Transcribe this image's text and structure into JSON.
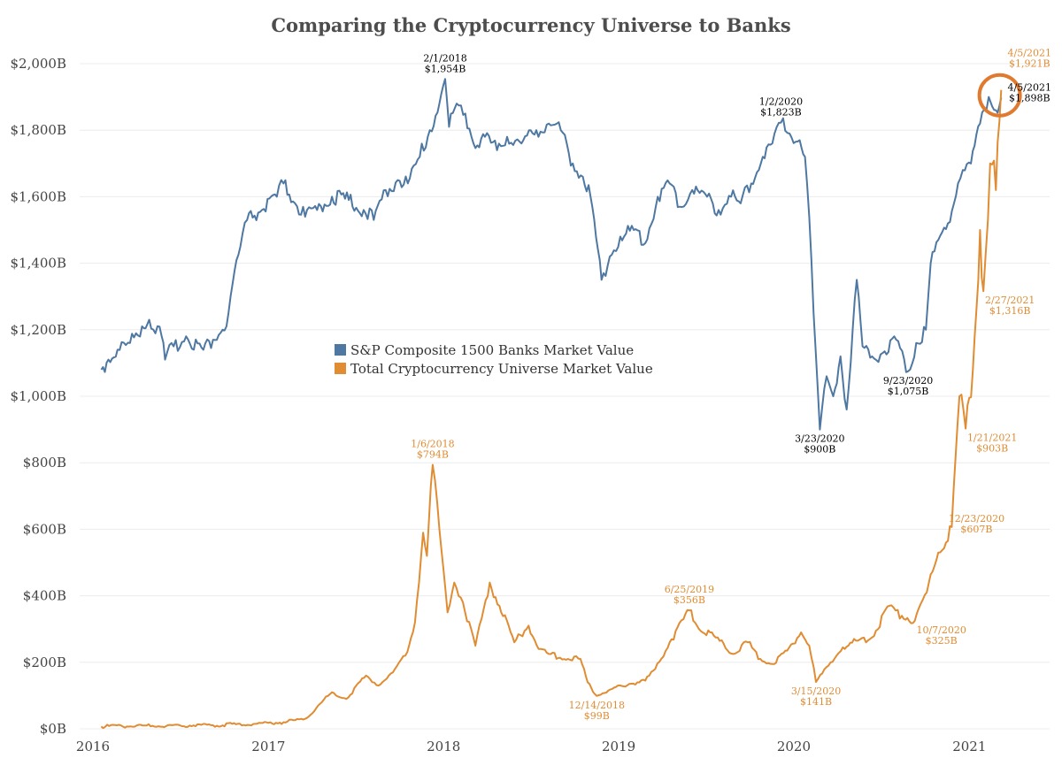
{
  "chart_data": {
    "type": "line",
    "title": "Comparing the Cryptocurrency Universe to Banks",
    "xlabel": "",
    "ylabel": "",
    "x_ticks": [
      "2016",
      "2017",
      "2018",
      "2019",
      "2020",
      "2021"
    ],
    "y_ticks": [
      "$0B",
      "$200B",
      "$400B",
      "$600B",
      "$800B",
      "$1,000B",
      "$1,200B",
      "$1,400B",
      "$1,600B",
      "$1,800B",
      "$2,000B"
    ],
    "xlim": [
      "2016-01-01",
      "2021-07-15"
    ],
    "ylim": [
      0,
      2000
    ],
    "grid": true,
    "legend_position": "center-left",
    "colors": {
      "banks": "#4e78a2",
      "crypto": "#e08c33",
      "highlight": "#e07a2f"
    },
    "series": [
      {
        "name": "S&P Composite 1500 Banks Market Value",
        "key": "banks",
        "points": [
          [
            "2016-02-15",
            1080
          ],
          [
            "2016-03-01",
            1110
          ],
          [
            "2016-03-20",
            1140
          ],
          [
            "2016-04-15",
            1160
          ],
          [
            "2016-05-10",
            1210
          ],
          [
            "2016-05-25",
            1230
          ],
          [
            "2016-06-20",
            1180
          ],
          [
            "2016-06-27",
            1110
          ],
          [
            "2016-07-15",
            1150
          ],
          [
            "2016-08-10",
            1180
          ],
          [
            "2016-09-15",
            1140
          ],
          [
            "2016-10-05",
            1170
          ],
          [
            "2016-10-25",
            1200
          ],
          [
            "2016-11-02",
            1210
          ],
          [
            "2016-11-15",
            1340
          ],
          [
            "2016-12-01",
            1450
          ],
          [
            "2016-12-15",
            1530
          ],
          [
            "2017-01-15",
            1560
          ],
          [
            "2017-02-15",
            1600
          ],
          [
            "2017-03-01",
            1640
          ],
          [
            "2017-03-25",
            1580
          ],
          [
            "2017-04-15",
            1540
          ],
          [
            "2017-05-10",
            1560
          ],
          [
            "2017-06-10",
            1600
          ],
          [
            "2017-07-15",
            1590
          ],
          [
            "2017-08-15",
            1560
          ],
          [
            "2017-09-05",
            1530
          ],
          [
            "2017-09-30",
            1620
          ],
          [
            "2017-10-25",
            1650
          ],
          [
            "2017-11-15",
            1640
          ],
          [
            "2017-12-10",
            1720
          ],
          [
            "2017-12-31",
            1800
          ],
          [
            "2018-01-20",
            1880
          ],
          [
            "2018-02-01",
            1954
          ],
          [
            "2018-02-09",
            1810
          ],
          [
            "2018-02-25",
            1880
          ],
          [
            "2018-03-15",
            1850
          ],
          [
            "2018-04-01",
            1760
          ],
          [
            "2018-04-25",
            1780
          ],
          [
            "2018-05-20",
            1740
          ],
          [
            "2018-06-10",
            1780
          ],
          [
            "2018-07-10",
            1760
          ],
          [
            "2018-08-10",
            1800
          ],
          [
            "2018-09-05",
            1820
          ],
          [
            "2018-09-30",
            1800
          ],
          [
            "2018-10-25",
            1700
          ],
          [
            "2018-11-15",
            1660
          ],
          [
            "2018-12-01",
            1600
          ],
          [
            "2018-12-24",
            1350
          ],
          [
            "2019-01-10",
            1420
          ],
          [
            "2019-02-01",
            1480
          ],
          [
            "2019-03-01",
            1500
          ],
          [
            "2019-03-25",
            1460
          ],
          [
            "2019-04-20",
            1600
          ],
          [
            "2019-05-15",
            1640
          ],
          [
            "2019-06-05",
            1570
          ],
          [
            "2019-07-01",
            1620
          ],
          [
            "2019-08-01",
            1600
          ],
          [
            "2019-08-25",
            1560
          ],
          [
            "2019-09-20",
            1600
          ],
          [
            "2019-10-10",
            1580
          ],
          [
            "2019-11-01",
            1640
          ],
          [
            "2019-11-25",
            1720
          ],
          [
            "2019-12-15",
            1760
          ],
          [
            "2020-01-02",
            1823
          ],
          [
            "2020-01-20",
            1790
          ],
          [
            "2020-02-10",
            1770
          ],
          [
            "2020-02-21",
            1720
          ],
          [
            "2020-03-01",
            1540
          ],
          [
            "2020-03-10",
            1250
          ],
          [
            "2020-03-23",
            900
          ],
          [
            "2020-04-06",
            1060
          ],
          [
            "2020-04-20",
            1000
          ],
          [
            "2020-05-05",
            1120
          ],
          [
            "2020-05-18",
            960
          ],
          [
            "2020-06-08",
            1350
          ],
          [
            "2020-06-20",
            1150
          ],
          [
            "2020-07-10",
            1120
          ],
          [
            "2020-08-01",
            1130
          ],
          [
            "2020-08-25",
            1180
          ],
          [
            "2020-09-23",
            1075
          ],
          [
            "2020-10-10",
            1160
          ],
          [
            "2020-10-30",
            1200
          ],
          [
            "2020-11-09",
            1400
          ],
          [
            "2020-11-25",
            1470
          ],
          [
            "2020-12-15",
            1520
          ],
          [
            "2021-01-05",
            1640
          ],
          [
            "2021-01-15",
            1680
          ],
          [
            "2021-02-01",
            1700
          ],
          [
            "2021-02-20",
            1820
          ],
          [
            "2021-03-10",
            1900
          ],
          [
            "2021-03-25",
            1860
          ],
          [
            "2021-04-05",
            1898
          ]
        ]
      },
      {
        "name": "Total Cryptocurrency Universe Market Value",
        "key": "crypto",
        "points": [
          [
            "2016-02-15",
            7
          ],
          [
            "2016-06-01",
            9
          ],
          [
            "2016-10-01",
            11
          ],
          [
            "2017-01-01",
            15
          ],
          [
            "2017-03-01",
            20
          ],
          [
            "2017-04-15",
            30
          ],
          [
            "2017-05-20",
            80
          ],
          [
            "2017-06-10",
            110
          ],
          [
            "2017-07-10",
            90
          ],
          [
            "2017-08-20",
            160
          ],
          [
            "2017-09-15",
            130
          ],
          [
            "2017-10-15",
            170
          ],
          [
            "2017-11-10",
            220
          ],
          [
            "2017-11-30",
            320
          ],
          [
            "2017-12-17",
            590
          ],
          [
            "2017-12-25",
            520
          ],
          [
            "2018-01-06",
            794
          ],
          [
            "2018-01-20",
            600
          ],
          [
            "2018-02-06",
            350
          ],
          [
            "2018-02-20",
            440
          ],
          [
            "2018-03-10",
            380
          ],
          [
            "2018-04-05",
            250
          ],
          [
            "2018-05-05",
            440
          ],
          [
            "2018-05-25",
            370
          ],
          [
            "2018-06-25",
            260
          ],
          [
            "2018-07-25",
            310
          ],
          [
            "2018-08-15",
            240
          ],
          [
            "2018-09-05",
            225
          ],
          [
            "2018-10-15",
            210
          ],
          [
            "2018-11-10",
            210
          ],
          [
            "2018-11-25",
            140
          ],
          [
            "2018-12-14",
            99
          ],
          [
            "2019-01-15",
            120
          ],
          [
            "2019-02-20",
            135
          ],
          [
            "2019-03-25",
            145
          ],
          [
            "2019-04-15",
            180
          ],
          [
            "2019-05-15",
            260
          ],
          [
            "2019-06-25",
            356
          ],
          [
            "2019-07-15",
            300
          ],
          [
            "2019-08-15",
            280
          ],
          [
            "2019-09-25",
            225
          ],
          [
            "2019-10-25",
            260
          ],
          [
            "2019-11-20",
            210
          ],
          [
            "2019-12-15",
            195
          ],
          [
            "2020-01-15",
            235
          ],
          [
            "2020-02-13",
            290
          ],
          [
            "2020-03-01",
            250
          ],
          [
            "2020-03-15",
            141
          ],
          [
            "2020-04-10",
            190
          ],
          [
            "2020-05-10",
            245
          ],
          [
            "2020-06-10",
            265
          ],
          [
            "2020-07-10",
            275
          ],
          [
            "2020-08-15",
            370
          ],
          [
            "2020-09-10",
            340
          ],
          [
            "2020-10-07",
            325
          ],
          [
            "2020-11-01",
            410
          ],
          [
            "2020-11-25",
            530
          ],
          [
            "2020-12-23",
            607
          ],
          [
            "2021-01-08",
            1000
          ],
          [
            "2021-01-21",
            903
          ],
          [
            "2021-02-05",
            1080
          ],
          [
            "2021-02-20",
            1500
          ],
          [
            "2021-02-27",
            1316
          ],
          [
            "2021-03-13",
            1700
          ],
          [
            "2021-03-25",
            1620
          ],
          [
            "2021-04-05",
            1921
          ]
        ]
      }
    ],
    "annotations": [
      {
        "series": "banks",
        "date": "2018-02-01",
        "value": 1954,
        "line1": "2/1/2018",
        "line2": "$1,954B",
        "pos": "above"
      },
      {
        "series": "banks",
        "date": "2020-01-02",
        "value": 1823,
        "line1": "1/2/2020",
        "line2": "$1,823B",
        "pos": "above"
      },
      {
        "series": "banks",
        "date": "2020-03-23",
        "value": 900,
        "line1": "3/23/2020",
        "line2": "$900B",
        "pos": "below"
      },
      {
        "series": "banks",
        "date": "2020-09-23",
        "value": 1075,
        "line1": "9/23/2020",
        "line2": "$1,075B",
        "pos": "below"
      },
      {
        "series": "banks",
        "date": "2021-04-05",
        "value": 1898,
        "line1": "4/5/2021",
        "line2": "$1,898B",
        "pos": "right-low"
      },
      {
        "series": "crypto",
        "date": "2018-01-06",
        "value": 794,
        "line1": "1/6/2018",
        "line2": "$794B",
        "pos": "above"
      },
      {
        "series": "crypto",
        "date": "2018-12-14",
        "value": 99,
        "line1": "12/14/2018",
        "line2": "$99B",
        "pos": "below"
      },
      {
        "series": "crypto",
        "date": "2019-06-25",
        "value": 356,
        "line1": "6/25/2019",
        "line2": "$356B",
        "pos": "above"
      },
      {
        "series": "crypto",
        "date": "2020-03-15",
        "value": 141,
        "line1": "3/15/2020",
        "line2": "$141B",
        "pos": "below"
      },
      {
        "series": "crypto",
        "date": "2020-10-07",
        "value": 325,
        "line1": "10/7/2020",
        "line2": "$325B",
        "pos": "below-right"
      },
      {
        "series": "crypto",
        "date": "2020-12-23",
        "value": 607,
        "line1": "12/23/2020",
        "line2": "$607B",
        "pos": "right"
      },
      {
        "series": "crypto",
        "date": "2021-01-21",
        "value": 903,
        "line1": "1/21/2021",
        "line2": "$903B",
        "pos": "below-right"
      },
      {
        "series": "crypto",
        "date": "2021-02-27",
        "value": 1316,
        "line1": "2/27/2021",
        "line2": "$1,316B",
        "pos": "below-right"
      },
      {
        "series": "crypto",
        "date": "2021-04-05",
        "value": 1921,
        "line1": "4/5/2021",
        "line2": "$1,921B",
        "pos": "right-high"
      }
    ],
    "highlight_circle": {
      "date": "2021-04-02",
      "value": 1905
    }
  }
}
